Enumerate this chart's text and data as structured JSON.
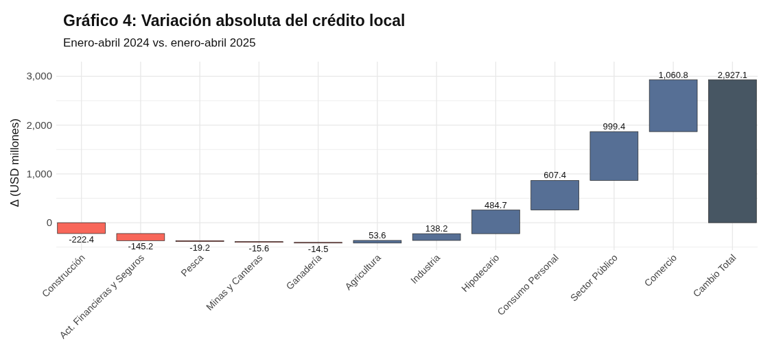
{
  "chart_data": {
    "type": "bar",
    "title": "Gráfico 4: Variación absoluta del crédito local",
    "subtitle": "Enero-abril 2024 vs. enero-abril 2025",
    "ylabel": "Δ (USD millones)",
    "categories": [
      "Construcción",
      "Act. Financieras y Seguros",
      "Pesca",
      "Minas y Canteras",
      "Ganadería",
      "Agricultura",
      "Industria",
      "Hipotecario",
      "Consumo Personal",
      "Sector Público",
      "Comercio",
      "Cambio Total"
    ],
    "values": [
      -222.4,
      -145.2,
      -19.2,
      -15.6,
      -14.5,
      53.6,
      138.2,
      484.7,
      607.4,
      999.4,
      1060.8,
      2927.1
    ],
    "base": [
      0,
      -222.4,
      -367.6,
      -386.8,
      -402.4,
      -416.9,
      -363.3,
      -225.1,
      259.6,
      867.0,
      1866.4,
      0
    ],
    "colors": [
      "#f8675a",
      "#f8675a",
      "#f8675a",
      "#f8675a",
      "#f8675a",
      "#566f95",
      "#566f95",
      "#566f95",
      "#566f95",
      "#566f95",
      "#566f95",
      "#475663"
    ],
    "value_labels": [
      "-222.4",
      "-145.2",
      "-19.2",
      "-15.6",
      "-14.5",
      "53.6",
      "138.2",
      "484.7",
      "607.4",
      "999.4",
      "1,060.8",
      "2,927.1"
    ],
    "grid": true,
    "ylim": [
      -560,
      3300
    ],
    "yticks": [
      {
        "value": -500,
        "label": null
      },
      0,
      {
        "value": 500,
        "label": null
      },
      {
        "value": 1000,
        "label": "1,000"
      },
      {
        "value": 1500,
        "label": null
      },
      {
        "value": 2000,
        "label": "2,000"
      },
      {
        "value": 2500,
        "label": null
      },
      {
        "value": 3000,
        "label": "3,000"
      }
    ]
  }
}
